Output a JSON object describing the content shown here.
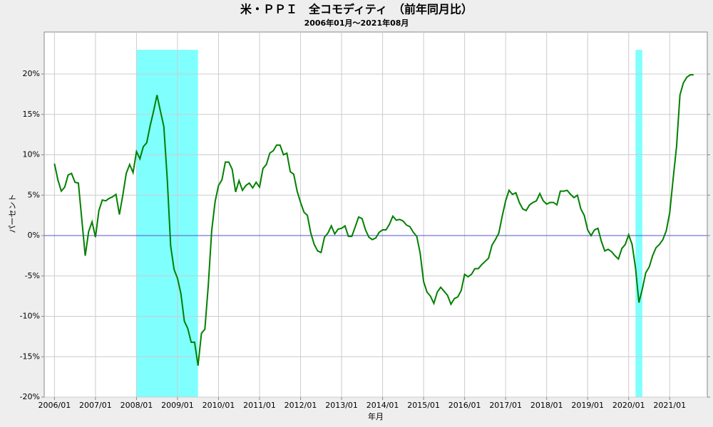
{
  "chart_data": {
    "type": "line",
    "title": "米・ＰＰＩ　全コモディティ　（前年同月比）",
    "subtitle": "2006年01月～2021年08月",
    "xlabel": "年月",
    "ylabel": "パーセント",
    "color": "#008000",
    "zero_line_color": "#5555cc",
    "shade_color": "#80ffff",
    "grid": true,
    "shaded_periods": [
      {
        "start": "2008/01",
        "end": "2009/06"
      },
      {
        "start": "2020/03",
        "end": "2020/04"
      }
    ],
    "xlim": [
      "2005/10",
      "2021/12"
    ],
    "xticks": [
      "2006/01",
      "2007/01",
      "2008/01",
      "2009/01",
      "2010/01",
      "2011/01",
      "2012/01",
      "2013/01",
      "2014/01",
      "2015/01",
      "2016/01",
      "2017/01",
      "2018/01",
      "2019/01",
      "2020/01",
      "2021/01"
    ],
    "ylim": [
      -20,
      25.2
    ],
    "yticks": [
      {
        "value": -20,
        "label": "-20%"
      },
      {
        "value": -15,
        "label": "-15%"
      },
      {
        "value": -10,
        "label": "-10%"
      },
      {
        "value": -5,
        "label": "-5%"
      },
      {
        "value": 0,
        "label": "0%"
      },
      {
        "value": 5,
        "label": "5%"
      },
      {
        "value": 10,
        "label": "10%"
      },
      {
        "value": 15,
        "label": "15%"
      },
      {
        "value": 20,
        "label": "20%"
      }
    ],
    "x": [
      "2006/01",
      "2006/02",
      "2006/03",
      "2006/04",
      "2006/05",
      "2006/06",
      "2006/07",
      "2006/08",
      "2006/09",
      "2006/10",
      "2006/11",
      "2006/12",
      "2007/01",
      "2007/02",
      "2007/03",
      "2007/04",
      "2007/05",
      "2007/06",
      "2007/07",
      "2007/08",
      "2007/09",
      "2007/10",
      "2007/11",
      "2007/12",
      "2008/01",
      "2008/02",
      "2008/03",
      "2008/04",
      "2008/05",
      "2008/06",
      "2008/07",
      "2008/08",
      "2008/09",
      "2008/10",
      "2008/11",
      "2008/12",
      "2009/01",
      "2009/02",
      "2009/03",
      "2009/04",
      "2009/05",
      "2009/06",
      "2009/07",
      "2009/08",
      "2009/09",
      "2009/10",
      "2009/11",
      "2009/12",
      "2010/01",
      "2010/02",
      "2010/03",
      "2010/04",
      "2010/05",
      "2010/06",
      "2010/07",
      "2010/08",
      "2010/09",
      "2010/10",
      "2010/11",
      "2010/12",
      "2011/01",
      "2011/02",
      "2011/03",
      "2011/04",
      "2011/05",
      "2011/06",
      "2011/07",
      "2011/08",
      "2011/09",
      "2011/10",
      "2011/11",
      "2011/12",
      "2012/01",
      "2012/02",
      "2012/03",
      "2012/04",
      "2012/05",
      "2012/06",
      "2012/07",
      "2012/08",
      "2012/09",
      "2012/10",
      "2012/11",
      "2012/12",
      "2013/01",
      "2013/02",
      "2013/03",
      "2013/04",
      "2013/05",
      "2013/06",
      "2013/07",
      "2013/08",
      "2013/09",
      "2013/10",
      "2013/11",
      "2013/12",
      "2014/01",
      "2014/02",
      "2014/03",
      "2014/04",
      "2014/05",
      "2014/06",
      "2014/07",
      "2014/08",
      "2014/09",
      "2014/10",
      "2014/11",
      "2014/12",
      "2015/01",
      "2015/02",
      "2015/03",
      "2015/04",
      "2015/05",
      "2015/06",
      "2015/07",
      "2015/08",
      "2015/09",
      "2015/10",
      "2015/11",
      "2015/12",
      "2016/01",
      "2016/02",
      "2016/03",
      "2016/04",
      "2016/05",
      "2016/06",
      "2016/07",
      "2016/08",
      "2016/09",
      "2016/10",
      "2016/11",
      "2016/12",
      "2017/01",
      "2017/02",
      "2017/03",
      "2017/04",
      "2017/05",
      "2017/06",
      "2017/07",
      "2017/08",
      "2017/09",
      "2017/10",
      "2017/11",
      "2017/12",
      "2018/01",
      "2018/02",
      "2018/03",
      "2018/04",
      "2018/05",
      "2018/06",
      "2018/07",
      "2018/08",
      "2018/09",
      "2018/10",
      "2018/11",
      "2018/12",
      "2019/01",
      "2019/02",
      "2019/03",
      "2019/04",
      "2019/05",
      "2019/06",
      "2019/07",
      "2019/08",
      "2019/09",
      "2019/10",
      "2019/11",
      "2019/12",
      "2020/01",
      "2020/02",
      "2020/03",
      "2020/04",
      "2020/05",
      "2020/06",
      "2020/07",
      "2020/08",
      "2020/09",
      "2020/10",
      "2020/11",
      "2020/12",
      "2021/01",
      "2021/02",
      "2021/03",
      "2021/04",
      "2021/05",
      "2021/06",
      "2021/07",
      "2021/08"
    ],
    "values": [
      8.9,
      6.9,
      5.5,
      6.0,
      7.5,
      7.7,
      6.6,
      6.5,
      2.0,
      -2.5,
      0.5,
      1.7,
      -0.2,
      3.1,
      4.4,
      4.3,
      4.6,
      4.8,
      5.1,
      2.6,
      5.0,
      7.7,
      8.8,
      7.8,
      10.4,
      9.5,
      11.0,
      11.5,
      13.6,
      15.4,
      17.4,
      15.4,
      13.5,
      7.0,
      -1.3,
      -4.2,
      -5.3,
      -7.2,
      -10.6,
      -11.5,
      -13.2,
      -13.2,
      -16.1,
      -12.1,
      -11.6,
      -6.2,
      0.6,
      4.2,
      6.2,
      6.9,
      9.1,
      9.1,
      8.2,
      5.4,
      6.8,
      5.6,
      6.2,
      6.5,
      5.9,
      6.6,
      6.0,
      8.3,
      8.8,
      10.2,
      10.5,
      11.2,
      11.2,
      10.0,
      10.2,
      7.9,
      7.6,
      5.5,
      4.1,
      2.9,
      2.5,
      0.3,
      -1.1,
      -1.9,
      -2.1,
      -0.2,
      0.3,
      1.2,
      0.2,
      0.8,
      0.9,
      1.2,
      -0.1,
      -0.1,
      1.1,
      2.3,
      2.1,
      0.7,
      -0.2,
      -0.5,
      -0.3,
      0.4,
      0.7,
      0.7,
      1.4,
      2.4,
      1.9,
      2.0,
      1.8,
      1.3,
      1.1,
      0.4,
      -0.1,
      -2.2,
      -5.7,
      -7.0,
      -7.5,
      -8.4,
      -7.0,
      -6.4,
      -6.9,
      -7.4,
      -8.5,
      -7.8,
      -7.6,
      -6.8,
      -4.8,
      -5.1,
      -4.8,
      -4.1,
      -4.1,
      -3.6,
      -3.2,
      -2.8,
      -1.2,
      -0.5,
      0.3,
      2.4,
      4.3,
      5.6,
      5.1,
      5.3,
      4.1,
      3.3,
      3.1,
      3.8,
      4.1,
      4.3,
      5.2,
      4.3,
      3.9,
      4.1,
      4.1,
      3.8,
      5.5,
      5.5,
      5.6,
      5.1,
      4.7,
      5.0,
      3.3,
      2.5,
      0.7,
      0.0,
      0.7,
      0.9,
      -0.7,
      -1.9,
      -1.7,
      -2.0,
      -2.5,
      -2.9,
      -1.6,
      -1.1,
      0.1,
      -1.1,
      -4.0,
      -8.3,
      -6.6,
      -4.6,
      -3.9,
      -2.5,
      -1.5,
      -1.1,
      -0.5,
      0.6,
      2.8,
      7.0,
      11.0,
      17.4,
      18.9,
      19.6,
      19.9,
      19.9
    ]
  }
}
